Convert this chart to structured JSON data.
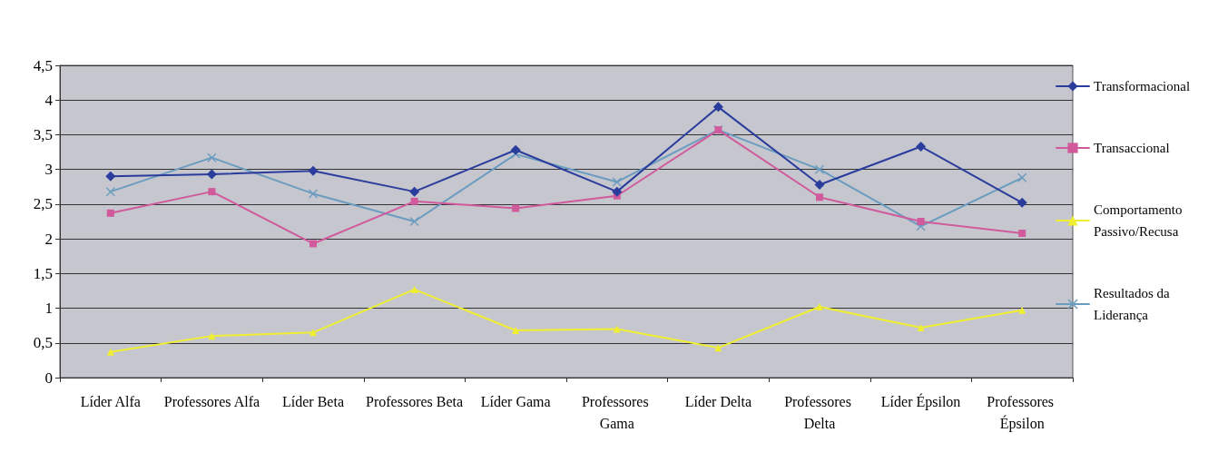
{
  "chart_data": {
    "type": "line",
    "categories": [
      "Líder Alfa",
      "Professores Alfa",
      "Líder Beta",
      "Professores Beta",
      "Líder Gama",
      "Professores Gama",
      "Líder Delta",
      "Professores Delta",
      "Líder Épsilon",
      "Professores Épsilon"
    ],
    "series": [
      {
        "name": "Transformacional",
        "color": "#2a3c9c",
        "marker": "diamond",
        "values": [
          2.9,
          2.93,
          2.98,
          2.68,
          3.28,
          2.68,
          3.9,
          2.78,
          3.33,
          2.52
        ]
      },
      {
        "name": "Transaccional",
        "color": "#d05a9c",
        "marker": "square",
        "values": [
          2.37,
          2.68,
          1.93,
          2.54,
          2.44,
          2.62,
          3.57,
          2.6,
          2.25,
          2.08
        ]
      },
      {
        "name": "Comportamento Passivo/Recusa",
        "color": "#f0ee30",
        "marker": "triangle",
        "values": [
          0.37,
          0.6,
          0.65,
          1.27,
          0.68,
          0.7,
          0.43,
          1.02,
          0.72,
          0.97
        ]
      },
      {
        "name": "Resultados da Liderança",
        "color": "#6a9cc0",
        "marker": "cross",
        "values": [
          2.68,
          3.17,
          2.65,
          2.25,
          3.22,
          2.82,
          3.57,
          3.0,
          2.18,
          2.88
        ]
      }
    ],
    "ylim": [
      0,
      4.5
    ],
    "yticks": [
      0,
      {
        "value": 0.5,
        "label": "0,5"
      },
      1,
      {
        "value": 1.5,
        "label": "1,5"
      },
      2,
      {
        "value": 2.5,
        "label": "2,5"
      },
      3,
      {
        "value": 3.5,
        "label": "3,5"
      },
      4,
      {
        "value": 4.5,
        "label": "4,5"
      }
    ],
    "grid": "y",
    "legend": "right",
    "line_style": "solid"
  }
}
